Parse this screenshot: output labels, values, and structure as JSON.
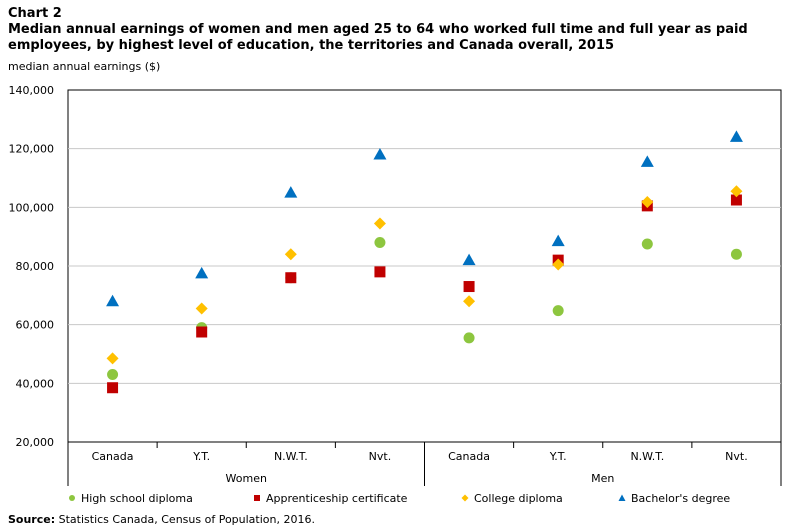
{
  "header": {
    "chart_label": "Chart 2",
    "title": "Median annual earnings of women and men aged 25 to 64 who worked full time and full year as paid employees, by highest level of education, the territories and Canada overall, 2015"
  },
  "source": {
    "label": "Source:",
    "text": "Statistics Canada, Census of Population, 2016."
  },
  "colors": {
    "high_school": "#8dc63f",
    "apprenticeship": "#c00000",
    "college": "#ffc000",
    "bachelor": "#0070c0",
    "grid": "#c8c8c8",
    "axis": "#000000"
  },
  "chart_data": {
    "type": "scatter",
    "title": "Median annual earnings of women and men aged 25 to 64 who worked full time and full year as paid employees, by highest level of education, the territories and Canada overall, 2015",
    "ylabel": "median annual earnings ($)",
    "xlabel": "",
    "ylim": [
      20000,
      140000
    ],
    "yticks": [
      20000,
      40000,
      60000,
      80000,
      100000,
      120000,
      140000
    ],
    "ytick_labels": [
      "20,000",
      "40,000",
      "60,000",
      "80,000",
      "100,000",
      "120,000",
      "140,000"
    ],
    "grid": true,
    "legend_position": "bottom",
    "groups": [
      {
        "name": "Women",
        "categories": [
          "Canada",
          "Y.T.",
          "N.W.T.",
          "Nvt."
        ]
      },
      {
        "name": "Men",
        "categories": [
          "Canada",
          "Y.T.",
          "N.W.T.",
          "Nvt."
        ]
      }
    ],
    "categories": [
      "Canada",
      "Y.T.",
      "N.W.T.",
      "Nvt.",
      "Canada",
      "Y.T.",
      "N.W.T.",
      "Nvt."
    ],
    "series": [
      {
        "name": "High school diploma",
        "marker": "circle",
        "values": [
          43000,
          59000,
          76000,
          88000,
          55500,
          64800,
          87500,
          84000
        ]
      },
      {
        "name": "Apprenticeship certificate",
        "marker": "square",
        "values": [
          38500,
          57500,
          76000,
          78000,
          73000,
          82000,
          100500,
          102500
        ]
      },
      {
        "name": "College diploma",
        "marker": "diamond",
        "values": [
          48500,
          65500,
          84000,
          94500,
          68000,
          80500,
          101800,
          105500
        ]
      },
      {
        "name": "Bachelor's degree",
        "marker": "triangle",
        "values": [
          68000,
          77500,
          105000,
          118000,
          82000,
          88500,
          115500,
          124000
        ]
      }
    ]
  }
}
